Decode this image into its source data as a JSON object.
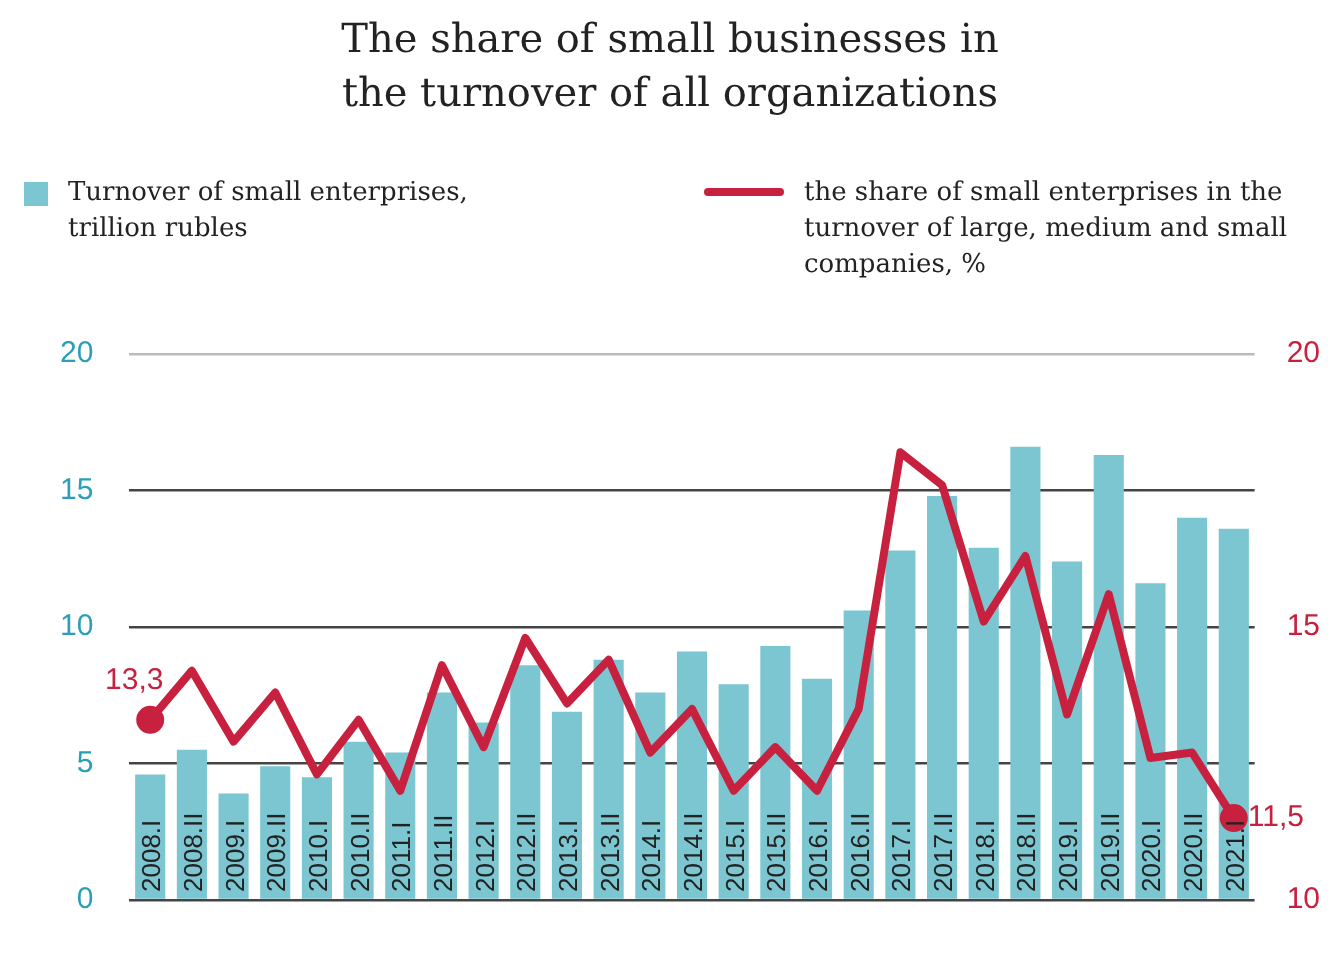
{
  "chart_data": {
    "type": "bar",
    "title": "The share of small businesses in the turnover of all organizations",
    "categories": [
      "2008.I",
      "2008.II",
      "2009.I",
      "2009.II",
      "2010.I",
      "2010.II",
      "2011.I",
      "2011.II",
      "2012.I",
      "2012.II",
      "2013.I",
      "2013.II",
      "2014.I",
      "2014.II",
      "2015.I",
      "2015.II",
      "2016.I",
      "2016.II",
      "2017.I",
      "2017.II",
      "2018.I",
      "2018.II",
      "2019.I",
      "2019.II",
      "2020.I",
      "2020.II",
      "2021.I"
    ],
    "series": [
      {
        "name": "Turnover of small enterprises, trillion rubles",
        "color": "#7bc6d0",
        "values": [
          4.6,
          5.5,
          3.9,
          4.9,
          4.5,
          5.8,
          5.4,
          7.6,
          6.5,
          8.6,
          6.9,
          8.8,
          7.6,
          9.1,
          7.9,
          9.3,
          8.1,
          10.6,
          12.8,
          14.8,
          12.9,
          16.6,
          12.4,
          16.3,
          11.6,
          14.0,
          13.6
        ]
      },
      {
        "name": "the share of small enterprises in the turnover of large, medium and small companies, %",
        "type": "line",
        "axis": "y2",
        "color": "#c8203f",
        "values": [
          13.3,
          14.2,
          12.9,
          13.8,
          12.3,
          13.3,
          12.0,
          14.3,
          12.8,
          14.8,
          13.6,
          14.4,
          12.7,
          13.5,
          12.0,
          12.8,
          12.0,
          13.5,
          18.2,
          17.6,
          15.1,
          16.3,
          13.4,
          15.6,
          12.6,
          12.7,
          11.5
        ],
        "value_labels": [
          "13,3",
          null,
          null,
          null,
          null,
          null,
          null,
          null,
          null,
          null,
          null,
          null,
          null,
          null,
          null,
          null,
          null,
          null,
          null,
          null,
          null,
          null,
          null,
          null,
          null,
          null,
          "11,5"
        ]
      }
    ],
    "ylim": [
      0,
      20
    ],
    "yticks": [
      0,
      5,
      10,
      15,
      20
    ],
    "y2lim": [
      10,
      20
    ],
    "y2ticks": [
      10,
      15,
      20
    ],
    "grid": "y",
    "legend": "top",
    "marker": "none"
  }
}
